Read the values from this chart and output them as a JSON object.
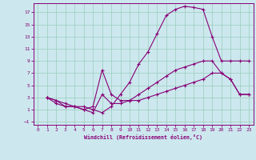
{
  "xlabel": "Windchill (Refroidissement éolien,°C)",
  "bg_color": "#cce8ee",
  "grid_color": "#99ccbb",
  "line_color": "#880077",
  "xlim": [
    -0.5,
    23.5
  ],
  "ylim": [
    -1.5,
    18.5
  ],
  "xticks": [
    0,
    1,
    2,
    3,
    4,
    5,
    6,
    7,
    8,
    9,
    10,
    11,
    12,
    13,
    14,
    15,
    16,
    17,
    18,
    19,
    20,
    21,
    22,
    23
  ],
  "yticks": [
    -1,
    1,
    3,
    5,
    7,
    9,
    11,
    13,
    15,
    17
  ],
  "line1_x": [
    1,
    2,
    3,
    4,
    5,
    6,
    7,
    8,
    9,
    10,
    11,
    12,
    13,
    14,
    15,
    16,
    17,
    18,
    19,
    20,
    21,
    22,
    23
  ],
  "line1_y": [
    3,
    2.5,
    2.0,
    1.5,
    1.5,
    1.0,
    0.5,
    1.5,
    3.5,
    5.5,
    8.5,
    10.5,
    13.5,
    16.5,
    17.5,
    18.0,
    17.8,
    17.5,
    13.0,
    9.0,
    9.0,
    9.0,
    9.0
  ],
  "line2_x": [
    1,
    2,
    3,
    4,
    5,
    6,
    7,
    8,
    9,
    10,
    11,
    12,
    13,
    14,
    15,
    16,
    17,
    18,
    19,
    20,
    21,
    22,
    23
  ],
  "line2_y": [
    3,
    2.5,
    1.5,
    1.5,
    1.0,
    1.5,
    7.5,
    3.5,
    2.5,
    2.5,
    3.5,
    4.5,
    5.5,
    6.5,
    7.5,
    8.0,
    8.5,
    9.0,
    9.0,
    7.0,
    6.0,
    3.5,
    3.5
  ],
  "line3_x": [
    1,
    2,
    3,
    4,
    5,
    6,
    7,
    8,
    9,
    10,
    11,
    12,
    13,
    14,
    15,
    16,
    17,
    18,
    19,
    20,
    21,
    22,
    23
  ],
  "line3_y": [
    3,
    2.0,
    1.5,
    1.5,
    1.0,
    0.5,
    3.5,
    2.0,
    2.0,
    2.5,
    2.5,
    3.0,
    3.5,
    4.0,
    4.5,
    5.0,
    5.5,
    6.0,
    7.0,
    7.0,
    6.0,
    3.5,
    3.5
  ]
}
